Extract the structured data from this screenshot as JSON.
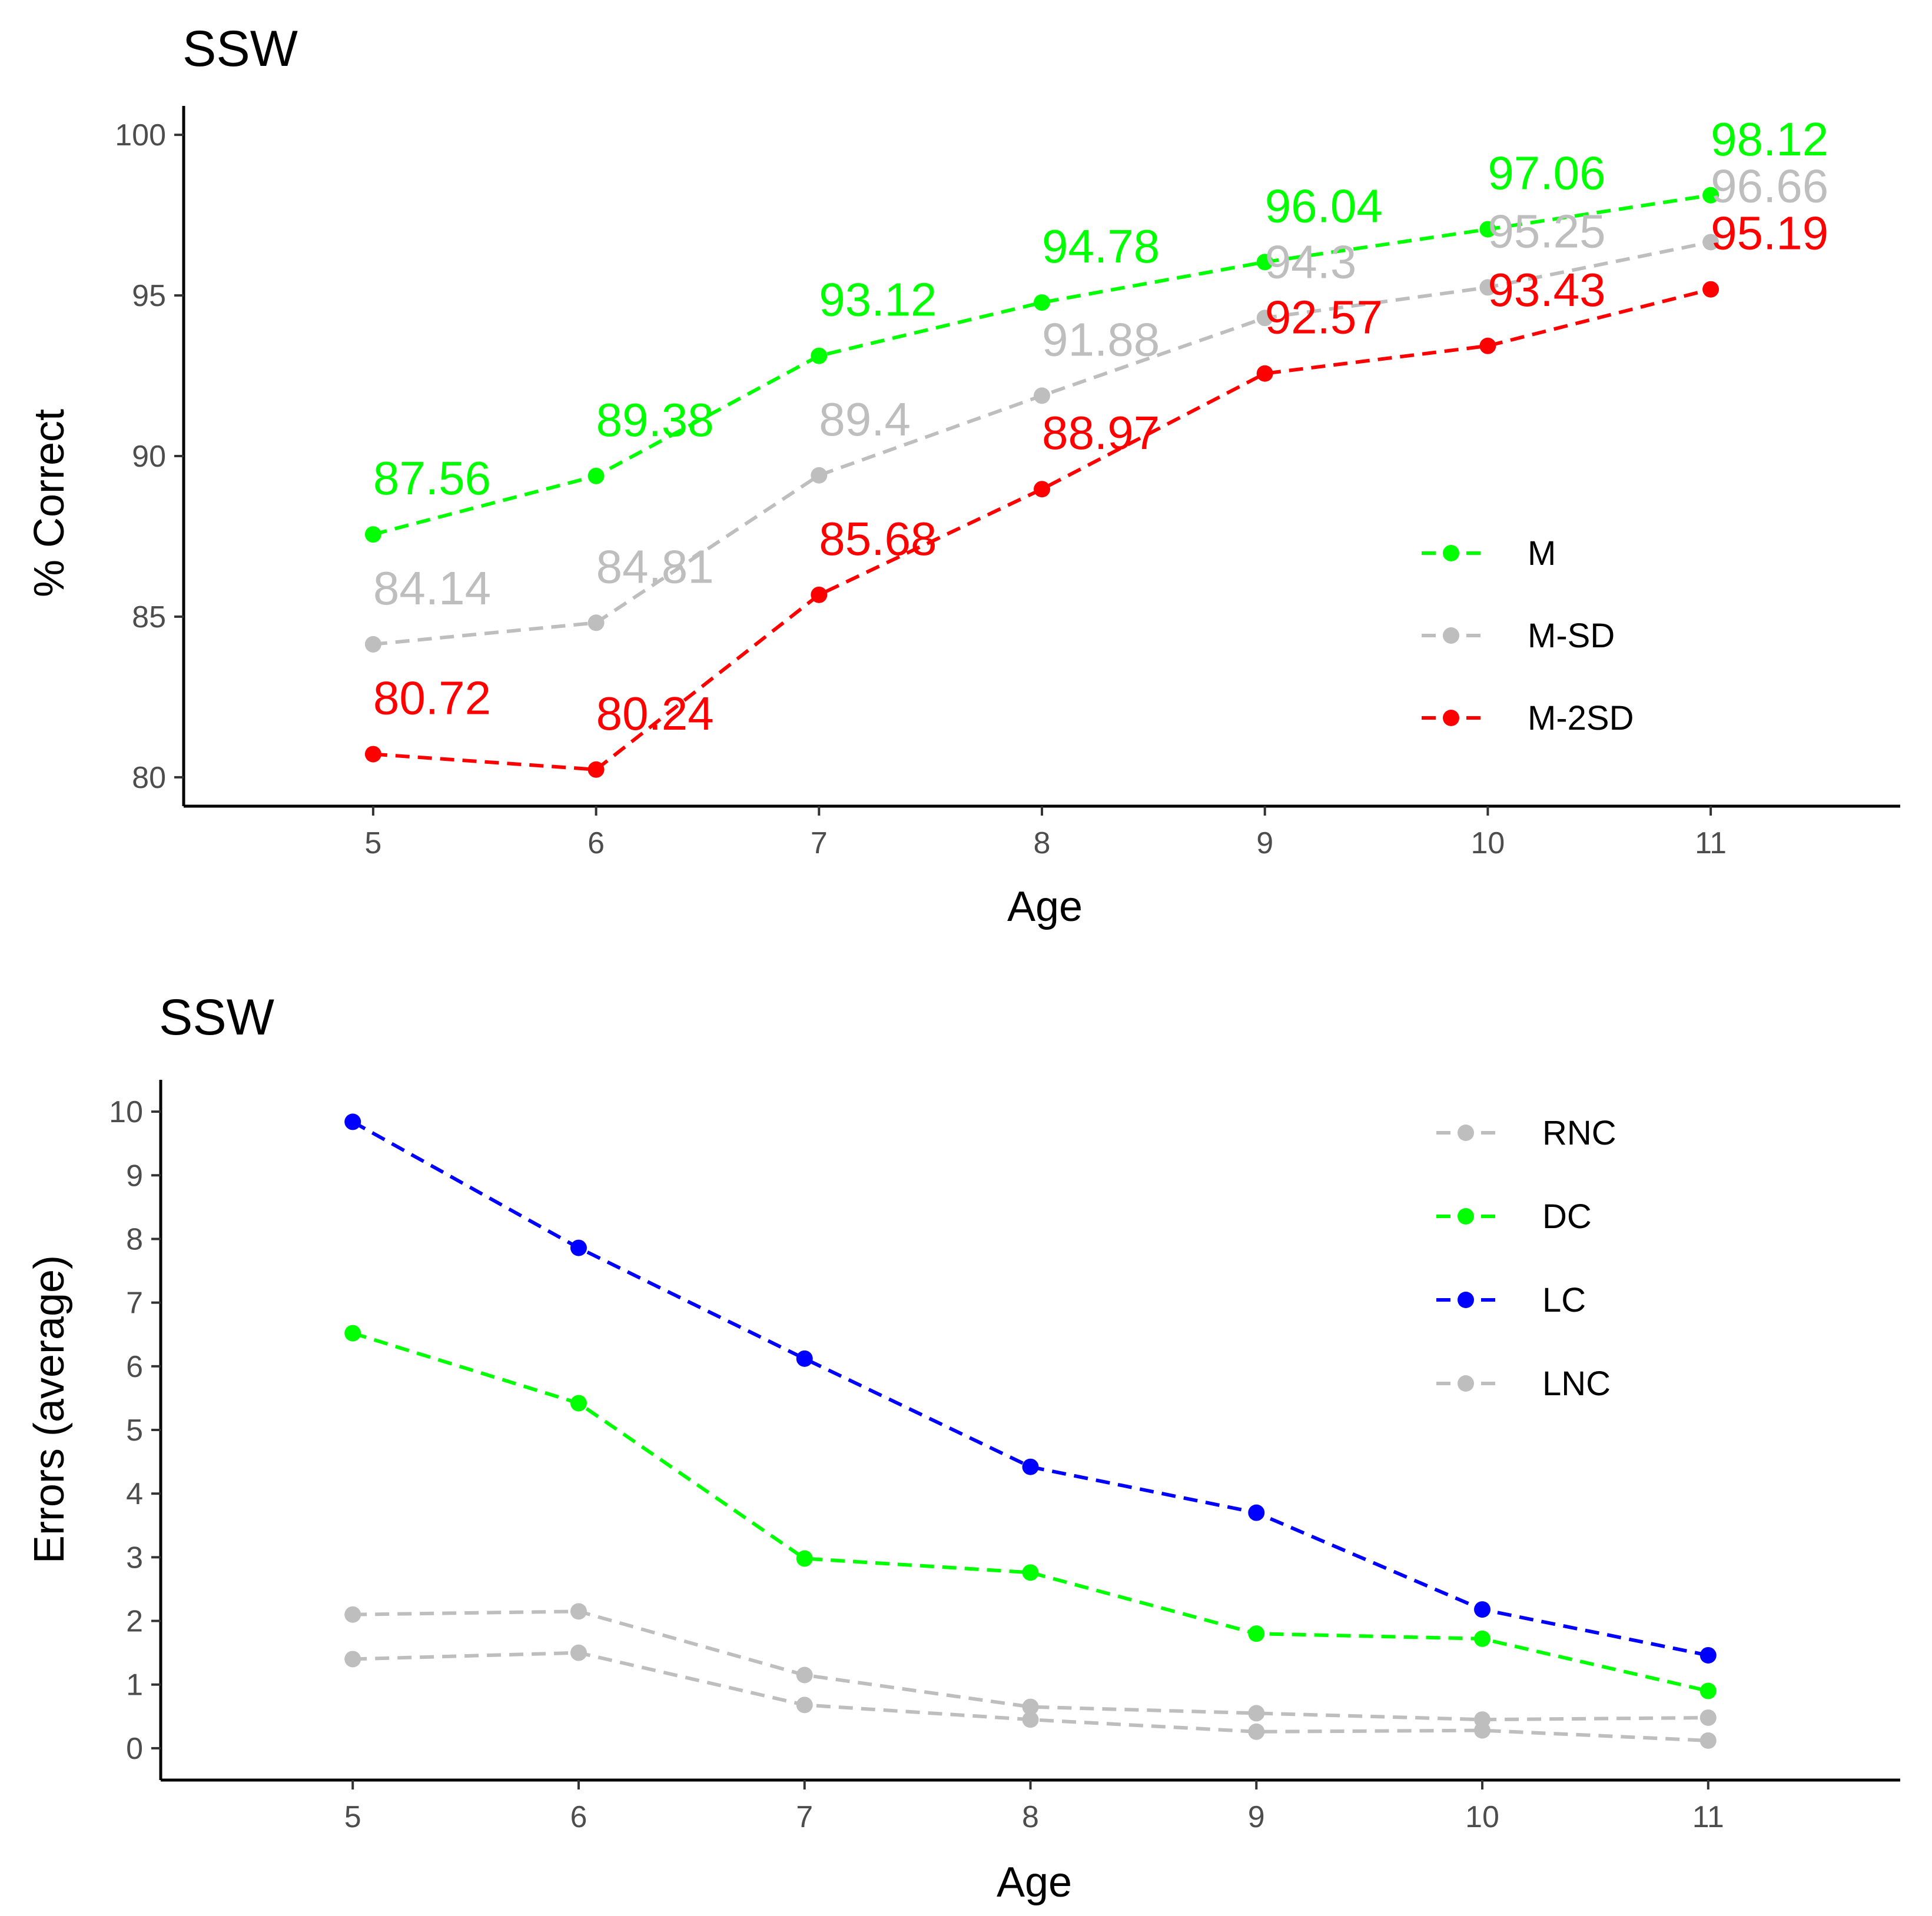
{
  "chart_data": [
    {
      "type": "line",
      "title": "SSW",
      "xlabel": "Age",
      "ylabel": "% Correct",
      "x": [
        5,
        6,
        7,
        8,
        9,
        10,
        11
      ],
      "xlim": [
        4.15,
        11.85
      ],
      "ylim": [
        79.1,
        100.9
      ],
      "x_ticks": [
        "5",
        "6",
        "7",
        "8",
        "9",
        "10",
        "11"
      ],
      "y_ticks": [
        "80",
        "85",
        "90",
        "95",
        "100"
      ],
      "grid": false,
      "legend_position": "right",
      "data_labels": true,
      "line_style": "dashed",
      "series": [
        {
          "name": "M",
          "color": "#00ff00",
          "values": [
            87.56,
            89.38,
            93.12,
            94.78,
            96.04,
            97.06,
            98.12
          ],
          "labels": [
            "87.56",
            "89.38",
            "93.12",
            "94.78",
            "96.04",
            "97.06",
            "98.12"
          ]
        },
        {
          "name": "M-SD",
          "color": "#bebebe",
          "values": [
            84.14,
            84.81,
            89.4,
            91.88,
            94.3,
            95.25,
            96.66
          ],
          "labels": [
            "84.14",
            "84.81",
            "89.4",
            "91.88",
            "94.3",
            "95.25",
            "96.66"
          ]
        },
        {
          "name": "M-2SD",
          "color": "#ff0000",
          "values": [
            80.72,
            80.24,
            85.68,
            88.97,
            92.57,
            93.43,
            95.19
          ],
          "labels": [
            "80.72",
            "80.24",
            "85.68",
            "88.97",
            "92.57",
            "93.43",
            "95.19"
          ]
        }
      ]
    },
    {
      "type": "line",
      "title": "SSW",
      "xlabel": "Age",
      "ylabel": "Errors (average)",
      "x": [
        5,
        6,
        7,
        8,
        9,
        10,
        11
      ],
      "xlim": [
        4.15,
        11.85
      ],
      "ylim": [
        -0.5,
        10.5
      ],
      "x_ticks": [
        "5",
        "6",
        "7",
        "8",
        "9",
        "10",
        "11"
      ],
      "y_ticks": [
        "0",
        "1",
        "2",
        "3",
        "4",
        "5",
        "6",
        "7",
        "8",
        "9",
        "10"
      ],
      "grid": false,
      "legend_position": "top-right",
      "data_labels": false,
      "line_style": "dashed",
      "series": [
        {
          "name": "RNC",
          "color": "#bebebe",
          "values": [
            2.1,
            2.15,
            1.15,
            0.65,
            0.55,
            0.45,
            0.48
          ]
        },
        {
          "name": "DC",
          "color": "#00ff00",
          "values": [
            6.52,
            5.42,
            2.98,
            2.76,
            1.8,
            1.72,
            0.9
          ]
        },
        {
          "name": "LC",
          "color": "#0000ff",
          "values": [
            9.84,
            7.86,
            6.12,
            4.42,
            3.7,
            2.18,
            1.46
          ]
        },
        {
          "name": "LNC",
          "color": "#bebebe",
          "values": [
            1.4,
            1.5,
            0.68,
            0.45,
            0.26,
            0.28,
            0.12
          ]
        }
      ]
    }
  ]
}
